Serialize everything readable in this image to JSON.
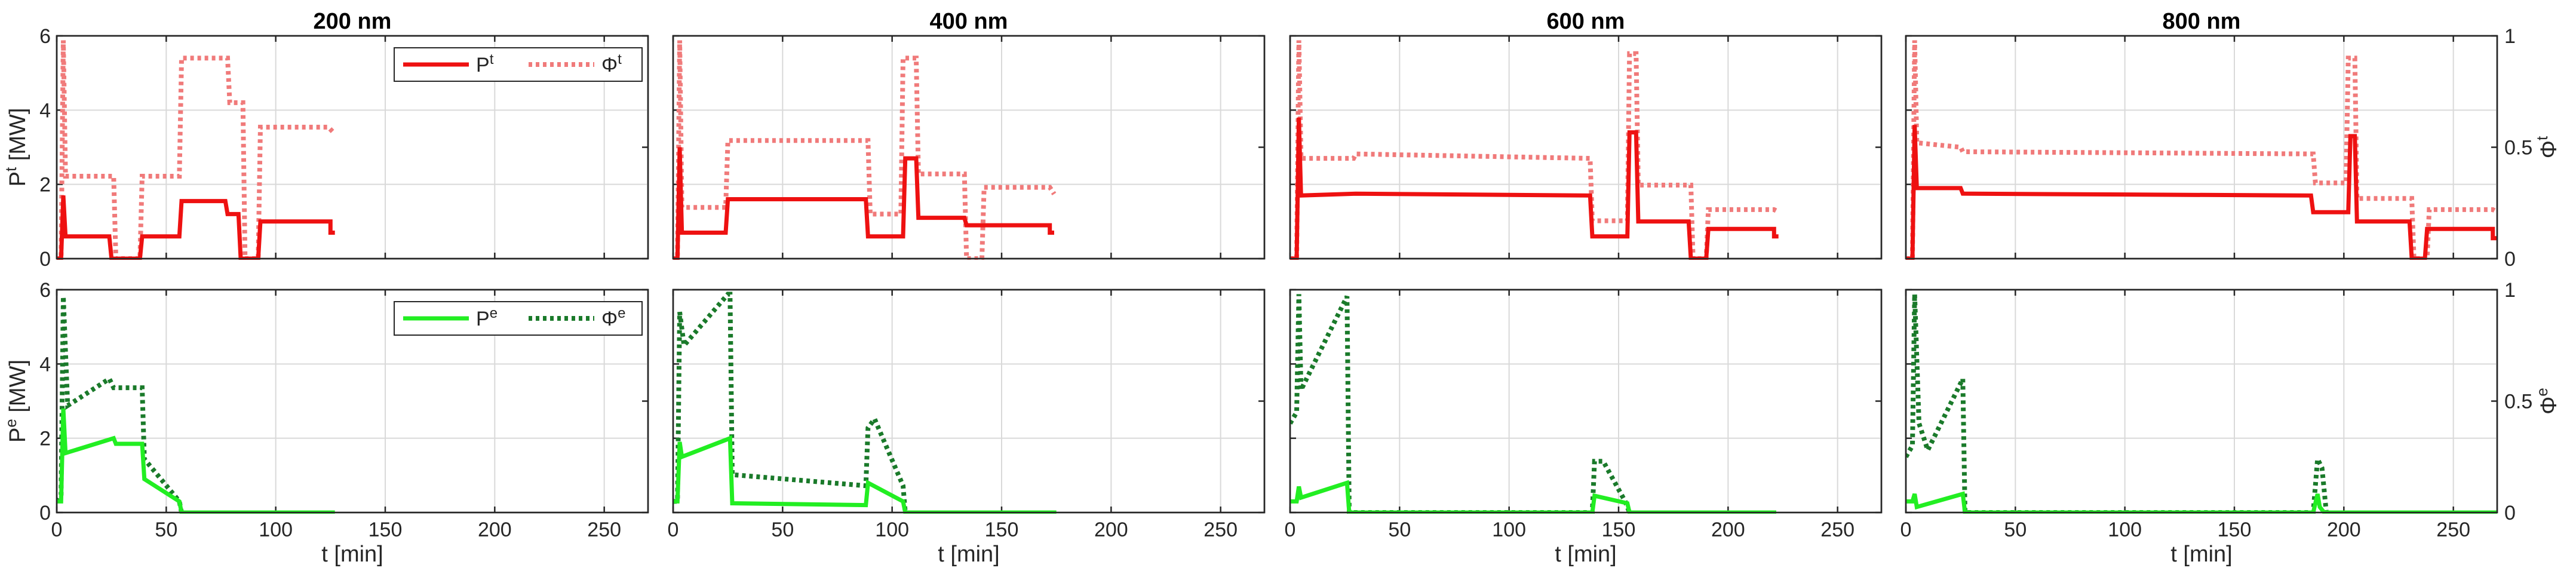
{
  "colors": {
    "thermal_power": "#ee1111",
    "thermal_flow": "#f07a7a",
    "electric_power": "#22ee22",
    "electric_flow": "#1a7a2a"
  },
  "chart_data": {
    "type": "line",
    "xlabel": "t [min]",
    "xlim": [
      0,
      270
    ],
    "xticks": [
      0,
      50,
      100,
      150,
      200,
      250
    ],
    "rows": [
      {
        "name": "thermal",
        "ylabel": "P",
        "ylabel_sup": "t",
        "ylabel_unit": " [MW]",
        "y2label": "Φ",
        "y2label_sup": "t",
        "ylim": [
          0,
          6
        ],
        "yticks": [
          0,
          2,
          4,
          6
        ],
        "y2lim": [
          0,
          1
        ],
        "y2ticks": [
          0,
          0.5,
          1
        ],
        "legend": [
          {
            "label": "P",
            "sup": "t",
            "style": "solid",
            "color": "#ee1111"
          },
          {
            "label": "Φ",
            "sup": "t",
            "style": "dotted",
            "color": "#f07a7a"
          }
        ]
      },
      {
        "name": "electric",
        "ylabel": "P",
        "ylabel_sup": "e",
        "ylabel_unit": " [MW]",
        "y2label": "Φ",
        "y2label_sup": "e",
        "ylim": [
          0,
          6
        ],
        "yticks": [
          0,
          2,
          4,
          6
        ],
        "y2lim": [
          0,
          1
        ],
        "y2ticks": [
          0,
          0.5,
          1
        ],
        "legend": [
          {
            "label": "P",
            "sup": "e",
            "style": "solid",
            "color": "#22ee22"
          },
          {
            "label": "Φ",
            "sup": "e",
            "style": "dotted",
            "color": "#1a7a2a"
          }
        ]
      }
    ],
    "panels": [
      {
        "title": "200 nm",
        "thermal_power": [
          [
            0,
            0
          ],
          [
            2,
            0
          ],
          [
            3,
            1.7
          ],
          [
            4,
            0.6
          ],
          [
            24,
            0.6
          ],
          [
            25,
            0
          ],
          [
            38,
            0
          ],
          [
            39,
            0.6
          ],
          [
            56,
            0.6
          ],
          [
            57,
            1.55
          ],
          [
            77,
            1.55
          ],
          [
            78,
            1.2
          ],
          [
            83,
            1.2
          ],
          [
            84,
            0
          ],
          [
            92,
            0
          ],
          [
            93,
            1
          ],
          [
            125,
            1
          ],
          [
            125,
            0.7
          ],
          [
            127,
            0.7
          ]
        ],
        "thermal_flow": [
          [
            0,
            0
          ],
          [
            2,
            0
          ],
          [
            3,
            0.98
          ],
          [
            4,
            0.37
          ],
          [
            26,
            0.37
          ],
          [
            27,
            0
          ],
          [
            38,
            0
          ],
          [
            39,
            0.37
          ],
          [
            56,
            0.37
          ],
          [
            57,
            0.9
          ],
          [
            78,
            0.9
          ],
          [
            79,
            0.7
          ],
          [
            85,
            0.7
          ],
          [
            86,
            0
          ],
          [
            92,
            0
          ],
          [
            93,
            0.59
          ],
          [
            124,
            0.59
          ],
          [
            126,
            0.57
          ]
        ],
        "electric_power": [
          [
            0,
            0.3
          ],
          [
            2,
            0.3
          ],
          [
            3,
            2.8
          ],
          [
            4,
            1.6
          ],
          [
            26,
            2.0
          ],
          [
            27,
            1.85
          ],
          [
            39,
            1.85
          ],
          [
            40,
            0.9
          ],
          [
            56,
            0.3
          ],
          [
            57,
            0
          ],
          [
            127,
            0
          ]
        ],
        "electric_flow": [
          [
            0,
            0.05
          ],
          [
            2,
            0.08
          ],
          [
            3,
            0.97
          ],
          [
            5,
            0.48
          ],
          [
            24,
            0.6
          ],
          [
            26,
            0.56
          ],
          [
            39,
            0.56
          ],
          [
            40,
            0.24
          ],
          [
            56,
            0.05
          ],
          [
            57,
            0
          ]
        ]
      },
      {
        "title": "400 nm",
        "thermal_power": [
          [
            0,
            0
          ],
          [
            2,
            0
          ],
          [
            3,
            3.0
          ],
          [
            4,
            0.7
          ],
          [
            24,
            0.7
          ],
          [
            25,
            1.6
          ],
          [
            88,
            1.6
          ],
          [
            89,
            0.6
          ],
          [
            105,
            0.6
          ],
          [
            106,
            2.7
          ],
          [
            111,
            2.7
          ],
          [
            112,
            1.1
          ],
          [
            133,
            1.1
          ],
          [
            134,
            0.9
          ],
          [
            172,
            0.9
          ],
          [
            172,
            0.7
          ],
          [
            174,
            0.7
          ]
        ],
        "thermal_flow": [
          [
            0,
            0
          ],
          [
            2,
            0
          ],
          [
            3,
            0.98
          ],
          [
            4,
            0.23
          ],
          [
            24,
            0.23
          ],
          [
            25,
            0.53
          ],
          [
            89,
            0.53
          ],
          [
            90,
            0.2
          ],
          [
            104,
            0.2
          ],
          [
            105,
            0.9
          ],
          [
            111,
            0.9
          ],
          [
            112,
            0.38
          ],
          [
            133,
            0.38
          ],
          [
            134,
            0
          ],
          [
            141,
            0
          ],
          [
            142,
            0.32
          ],
          [
            172,
            0.32
          ],
          [
            174,
            0.29
          ]
        ],
        "electric_power": [
          [
            0,
            0.3
          ],
          [
            2,
            0.3
          ],
          [
            3,
            1.9
          ],
          [
            4,
            1.5
          ],
          [
            26,
            2.0
          ],
          [
            27,
            0.25
          ],
          [
            88,
            0.2
          ],
          [
            89,
            0.8
          ],
          [
            105,
            0.3
          ],
          [
            106,
            0
          ],
          [
            175,
            0
          ]
        ],
        "electric_flow": [
          [
            0,
            0.05
          ],
          [
            2,
            0.05
          ],
          [
            3,
            0.9
          ],
          [
            5,
            0.75
          ],
          [
            25,
            0.98
          ],
          [
            26,
            0.98
          ],
          [
            27,
            0.17
          ],
          [
            88,
            0.12
          ],
          [
            89,
            0.38
          ],
          [
            92,
            0.42
          ],
          [
            105,
            0.12
          ],
          [
            106,
            0
          ]
        ]
      },
      {
        "title": "600 nm",
        "thermal_power": [
          [
            0,
            0
          ],
          [
            3,
            0
          ],
          [
            4,
            3.8
          ],
          [
            5,
            1.7
          ],
          [
            30,
            1.75
          ],
          [
            137,
            1.7
          ],
          [
            138,
            0.6
          ],
          [
            154,
            0.6
          ],
          [
            155,
            3.4
          ],
          [
            158,
            3.4
          ],
          [
            159,
            1.0
          ],
          [
            182,
            1.0
          ],
          [
            183,
            0
          ],
          [
            190,
            0
          ],
          [
            191,
            0.8
          ],
          [
            221,
            0.8
          ],
          [
            221,
            0.6
          ],
          [
            223,
            0.6
          ]
        ],
        "thermal_flow": [
          [
            0,
            0
          ],
          [
            3,
            0
          ],
          [
            4,
            0.98
          ],
          [
            5,
            0.45
          ],
          [
            29,
            0.45
          ],
          [
            30,
            0.47
          ],
          [
            137,
            0.45
          ],
          [
            138,
            0.17
          ],
          [
            154,
            0.17
          ],
          [
            155,
            0.92
          ],
          [
            158,
            0.92
          ],
          [
            159,
            0.33
          ],
          [
            183,
            0.33
          ],
          [
            184,
            0
          ],
          [
            190,
            0
          ],
          [
            191,
            0.22
          ],
          [
            221,
            0.22
          ],
          [
            223,
            0.21
          ]
        ],
        "electric_power": [
          [
            0,
            0.3
          ],
          [
            3,
            0.3
          ],
          [
            4,
            0.7
          ],
          [
            5,
            0.4
          ],
          [
            26,
            0.8
          ],
          [
            27,
            0
          ],
          [
            138,
            0
          ],
          [
            139,
            0.45
          ],
          [
            154,
            0.25
          ],
          [
            155,
            0
          ],
          [
            222,
            0
          ]
        ],
        "electric_flow": [
          [
            0,
            0.4
          ],
          [
            3,
            0.45
          ],
          [
            4,
            0.98
          ],
          [
            5,
            0.55
          ],
          [
            25,
            0.95
          ],
          [
            26,
            0.97
          ],
          [
            27,
            0
          ],
          [
            138,
            0
          ],
          [
            139,
            0.23
          ],
          [
            143,
            0.23
          ],
          [
            153,
            0.05
          ],
          [
            155,
            0
          ]
        ]
      },
      {
        "title": "800 nm",
        "thermal_power": [
          [
            0,
            0
          ],
          [
            3,
            0
          ],
          [
            4,
            3.6
          ],
          [
            5,
            1.9
          ],
          [
            25,
            1.9
          ],
          [
            26,
            1.75
          ],
          [
            185,
            1.7
          ],
          [
            186,
            1.25
          ],
          [
            202,
            1.25
          ],
          [
            203,
            3.3
          ],
          [
            205,
            3.3
          ],
          [
            206,
            1.0
          ],
          [
            230,
            1.0
          ],
          [
            231,
            0
          ],
          [
            237,
            0
          ],
          [
            238,
            0.8
          ],
          [
            268,
            0.8
          ],
          [
            268,
            0.55
          ],
          [
            270,
            0.55
          ]
        ],
        "thermal_flow": [
          [
            0,
            0
          ],
          [
            3,
            0
          ],
          [
            4,
            0.98
          ],
          [
            5,
            0.52
          ],
          [
            25,
            0.5
          ],
          [
            26,
            0.48
          ],
          [
            186,
            0.47
          ],
          [
            187,
            0.34
          ],
          [
            201,
            0.34
          ],
          [
            202,
            0.9
          ],
          [
            205,
            0.9
          ],
          [
            206,
            0.27
          ],
          [
            231,
            0.27
          ],
          [
            232,
            0
          ],
          [
            238,
            0
          ],
          [
            239,
            0.22
          ],
          [
            268,
            0.22
          ],
          [
            270,
            0.21
          ]
        ],
        "electric_power": [
          [
            0,
            0.3
          ],
          [
            3,
            0.3
          ],
          [
            4,
            0.5
          ],
          [
            5,
            0.15
          ],
          [
            26,
            0.5
          ],
          [
            27,
            0
          ],
          [
            186,
            0
          ],
          [
            188,
            0.5
          ],
          [
            189,
            0.15
          ],
          [
            191,
            0
          ],
          [
            270,
            0
          ]
        ],
        "electric_flow": [
          [
            0,
            0.25
          ],
          [
            3,
            0.3
          ],
          [
            4,
            0.98
          ],
          [
            6,
            0.4
          ],
          [
            10,
            0.28
          ],
          [
            26,
            0.6
          ],
          [
            27,
            0
          ],
          [
            186,
            0
          ],
          [
            188,
            0.24
          ],
          [
            190,
            0.2
          ],
          [
            192,
            0
          ]
        ]
      }
    ]
  }
}
